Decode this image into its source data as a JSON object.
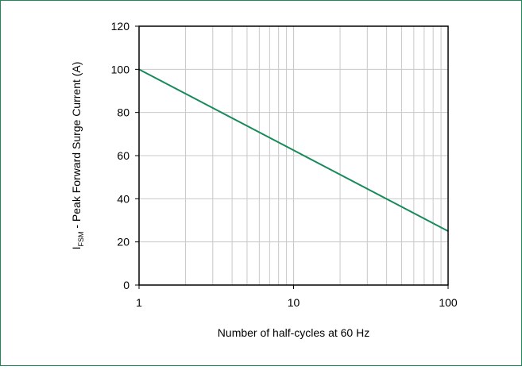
{
  "chart_data": {
    "type": "line",
    "xscale": "log",
    "xlim": [
      1,
      100
    ],
    "ylim": [
      0,
      120
    ],
    "xticks": [
      "1",
      "10",
      "100"
    ],
    "yticks": [
      "0",
      "20",
      "40",
      "60",
      "80",
      "100",
      "120"
    ],
    "ylabel_main": "I",
    "ylabel_sub": "FSM",
    "ylabel_rest": " - Peak Forward Surge Current (A)",
    "xlabel": "Number of half-cycles at 60 Hz",
    "grid": true,
    "series": [
      {
        "x": [
          1,
          100
        ],
        "y": [
          100,
          25
        ]
      }
    ],
    "colors": {
      "line": "#168a5a",
      "border": "#1a8a5a",
      "grid": "#c8c8c8",
      "axes": "#000000"
    }
  }
}
